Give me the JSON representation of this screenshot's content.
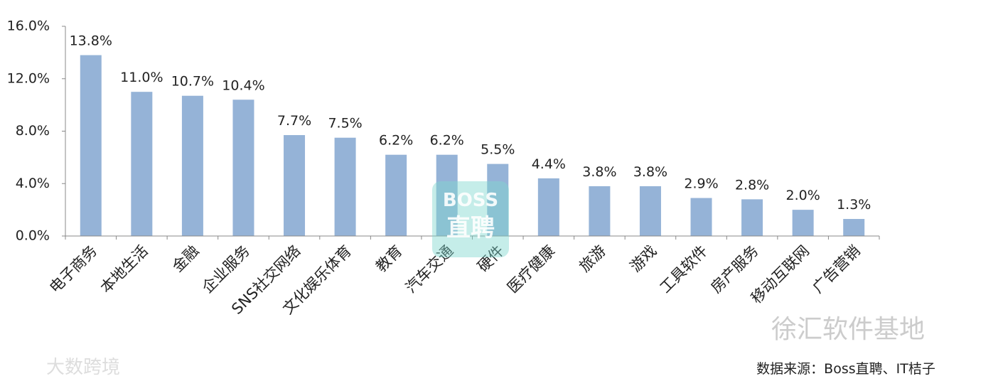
{
  "chart_data": {
    "type": "bar",
    "categories": [
      "电子商务",
      "本地生活",
      "金融",
      "企业服务",
      "SNS社交网络",
      "文化娱乐体育",
      "教育",
      "汽车交通",
      "硬件",
      "医疗健康",
      "旅游",
      "游戏",
      "工具软件",
      "房产服务",
      "移动互联网",
      "广告营销"
    ],
    "values": [
      13.8,
      11.0,
      10.7,
      10.4,
      7.7,
      7.5,
      6.2,
      6.2,
      5.5,
      4.4,
      3.8,
      3.8,
      2.9,
      2.8,
      2.0,
      1.3
    ],
    "value_labels": [
      "13.8%",
      "11.0%",
      "10.7%",
      "10.4%",
      "7.7%",
      "7.5%",
      "6.2%",
      "6.2%",
      "5.5%",
      "4.4%",
      "3.8%",
      "3.8%",
      "2.9%",
      "2.8%",
      "2.0%",
      "1.3%"
    ],
    "color": "#95b3d7",
    "ylim": [
      0,
      16
    ],
    "yticks": [
      {
        "value": 0,
        "label": "0.0%"
      },
      {
        "value": 4,
        "label": "4.0%"
      },
      {
        "value": 8,
        "label": "8.0%"
      },
      {
        "value": 12,
        "label": "12.0%"
      },
      {
        "value": 16,
        "label": "16.0%"
      }
    ],
    "grid": false,
    "source": "数据来源：Boss直聘、IT桔子",
    "watermarks": [
      "BOSS",
      "直聘",
      "徐汇软件基地",
      "大数跨境"
    ]
  }
}
